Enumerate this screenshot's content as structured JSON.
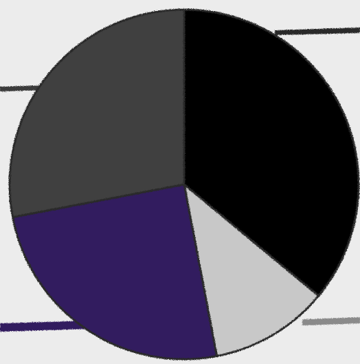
{
  "chart_data": {
    "type": "pie",
    "title": "",
    "legend": "none",
    "start_angle_deg": 0,
    "direction": "clockwise",
    "slices": [
      {
        "value": 36,
        "color": "#000000"
      },
      {
        "value": 11,
        "color": "#c8c8c8"
      },
      {
        "value": 25,
        "color": "#311a5e"
      },
      {
        "value": 28,
        "color": "#414141"
      }
    ]
  },
  "decor": {
    "background": "#ececec",
    "rule_color": "#2a2a2a",
    "rule_color_light": "#8a8a8a"
  }
}
